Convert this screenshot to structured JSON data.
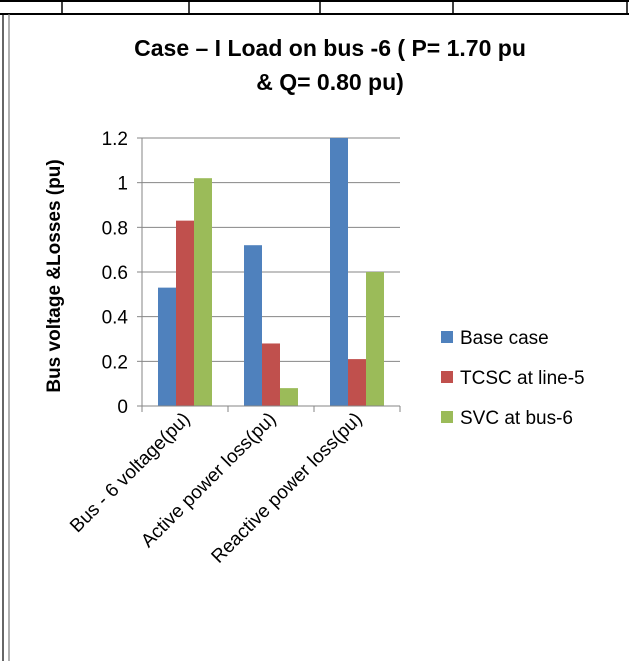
{
  "chart_data": {
    "type": "bar",
    "title_line1": "Case – I  Load on bus -6 ( P= 1.70 pu",
    "title_line2": "& Q= 0.80 pu)",
    "xlabel": "",
    "ylabel": "Bus voltage &Losses (pu)",
    "ylim": [
      0,
      1.2
    ],
    "yticks": [
      "0",
      "0.2",
      "0.4",
      "0.6",
      "0.8",
      "1",
      "1.2"
    ],
    "grid": true,
    "legend_position": "right",
    "categories": [
      "Bus - 6 voltage(pu)",
      "Active power loss(pu)",
      "Reactive power loss(pu)"
    ],
    "series": [
      {
        "name": "Base case",
        "color": "#4F81BD",
        "values": [
          0.53,
          0.72,
          1.2
        ]
      },
      {
        "name": "TCSC at line-5",
        "color": "#C0504D",
        "values": [
          0.83,
          0.28,
          0.21
        ]
      },
      {
        "name": "SVC at bus-6",
        "color": "#9BBB59",
        "values": [
          1.02,
          0.08,
          0.6
        ]
      }
    ]
  }
}
